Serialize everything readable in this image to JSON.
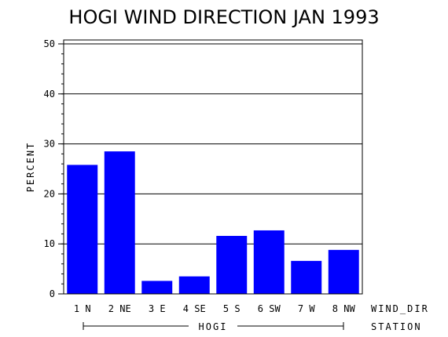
{
  "chart_data": {
    "type": "bar",
    "title": "HOGI WIND DIRECTION JAN 1993",
    "ylabel": "PERCENT",
    "xlabel_right": "WIND_DIR",
    "group_axis_label": "STATION",
    "group_name": "HOGI",
    "categories": [
      "1 N",
      "2 NE",
      "3 E",
      "4 SE",
      "5 S",
      "6 SW",
      "7 W",
      "8 NW"
    ],
    "values": [
      25.8,
      28.5,
      2.6,
      3.5,
      11.6,
      12.7,
      6.6,
      8.8
    ],
    "ylim": [
      0,
      50
    ],
    "yticks": [
      0,
      10,
      20,
      30,
      40,
      50
    ],
    "grid": true,
    "bar_color": "#0000ff"
  }
}
